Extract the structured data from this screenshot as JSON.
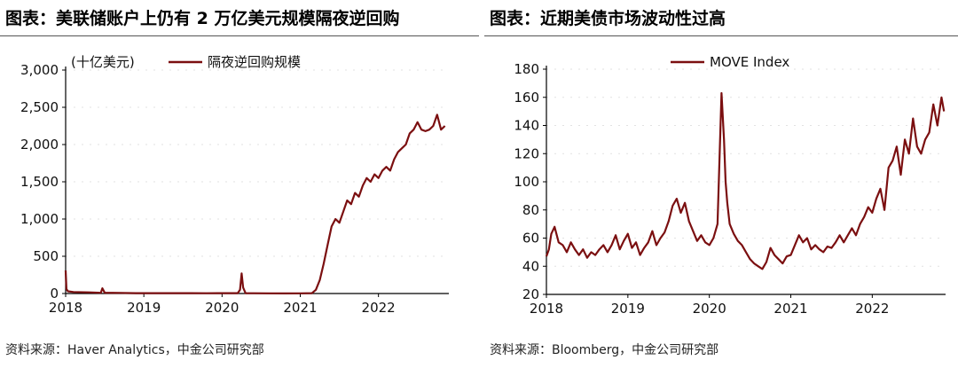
{
  "panels": {
    "left": {
      "title": "图表：美联储账户上仍有 2 万亿美元规模隔夜逆回购",
      "source": "资料来源：Haver Analytics，中金公司研究部"
    },
    "right": {
      "title": "图表：近期美债市场波动性过高",
      "source": "资料来源：Bloomberg，中金公司研究部"
    }
  },
  "colors": {
    "series": "#7b0f10",
    "axis": "#000000",
    "grid": "#e2e2e2"
  },
  "chart_data": [
    {
      "type": "line",
      "unit_label": "(十亿美元)",
      "xlim": [
        2018,
        2022.9
      ],
      "ylim": [
        0,
        3000
      ],
      "x_ticks": [
        2018,
        2019,
        2020,
        2021,
        2022
      ],
      "x_tick_labels": [
        "2018",
        "2019",
        "2020",
        "2021",
        "2022"
      ],
      "y_ticks": [
        0,
        500,
        1000,
        1500,
        2000,
        2500,
        3000
      ],
      "y_tick_labels": [
        "0",
        "500",
        "1,000",
        "1,500",
        "2,000",
        "2,500",
        "3,000"
      ],
      "legend_position": "top",
      "grid": true,
      "series": [
        {
          "name": "隔夜逆回购规模",
          "x": [
            2018,
            2018.01,
            2018.03,
            2018.1,
            2018.3,
            2018.45,
            2018.47,
            2018.5,
            2018.7,
            2018.9,
            2019,
            2019.2,
            2019.4,
            2019.6,
            2019.8,
            2019.95,
            2020,
            2020.1,
            2020.2,
            2020.23,
            2020.25,
            2020.27,
            2020.3,
            2020.4,
            2020.6,
            2020.8,
            2021,
            2021.15,
            2021.2,
            2021.25,
            2021.3,
            2021.35,
            2021.4,
            2021.45,
            2021.5,
            2021.55,
            2021.6,
            2021.65,
            2021.7,
            2021.75,
            2021.8,
            2021.85,
            2021.9,
            2021.95,
            2022,
            2022.05,
            2022.1,
            2022.15,
            2022.2,
            2022.25,
            2022.3,
            2022.35,
            2022.4,
            2022.45,
            2022.5,
            2022.55,
            2022.6,
            2022.65,
            2022.7,
            2022.75,
            2022.8,
            2022.85
          ],
          "y": [
            310,
            60,
            30,
            20,
            15,
            10,
            70,
            10,
            8,
            5,
            5,
            5,
            5,
            5,
            3,
            5,
            5,
            5,
            5,
            50,
            270,
            80,
            5,
            3,
            2,
            1,
            2,
            5,
            50,
            180,
            400,
            650,
            900,
            1000,
            950,
            1100,
            1250,
            1200,
            1350,
            1300,
            1450,
            1550,
            1500,
            1600,
            1550,
            1650,
            1700,
            1650,
            1800,
            1900,
            1950,
            2000,
            2150,
            2200,
            2300,
            2200,
            2180,
            2200,
            2250,
            2400,
            2200,
            2250
          ]
        }
      ]
    },
    {
      "type": "line",
      "xlim": [
        2018,
        2022.9
      ],
      "ylim": [
        20,
        180
      ],
      "x_ticks": [
        2018,
        2019,
        2020,
        2021,
        2022
      ],
      "x_tick_labels": [
        "2018",
        "2019",
        "2020",
        "2021",
        "2022"
      ],
      "y_ticks": [
        20,
        40,
        60,
        80,
        100,
        120,
        140,
        160,
        180
      ],
      "y_tick_labels": [
        "20",
        "40",
        "60",
        "80",
        "100",
        "120",
        "140",
        "160",
        "180"
      ],
      "legend_position": "top",
      "grid": true,
      "series": [
        {
          "name": "MOVE Index",
          "x": [
            2018,
            2018.03,
            2018.06,
            2018.1,
            2018.15,
            2018.2,
            2018.25,
            2018.3,
            2018.35,
            2018.4,
            2018.45,
            2018.5,
            2018.55,
            2018.6,
            2018.65,
            2018.7,
            2018.75,
            2018.8,
            2018.85,
            2018.9,
            2018.95,
            2019,
            2019.05,
            2019.1,
            2019.15,
            2019.2,
            2019.25,
            2019.3,
            2019.35,
            2019.4,
            2019.45,
            2019.5,
            2019.55,
            2019.6,
            2019.65,
            2019.7,
            2019.75,
            2019.8,
            2019.85,
            2019.9,
            2019.95,
            2020,
            2020.05,
            2020.1,
            2020.15,
            2020.18,
            2020.2,
            2020.22,
            2020.25,
            2020.3,
            2020.35,
            2020.4,
            2020.45,
            2020.5,
            2020.55,
            2020.6,
            2020.65,
            2020.7,
            2020.75,
            2020.8,
            2020.85,
            2020.9,
            2020.95,
            2021,
            2021.05,
            2021.1,
            2021.15,
            2021.2,
            2021.25,
            2021.3,
            2021.35,
            2021.4,
            2021.45,
            2021.5,
            2021.55,
            2021.6,
            2021.65,
            2021.7,
            2021.75,
            2021.8,
            2021.85,
            2021.9,
            2021.95,
            2022,
            2022.05,
            2022.1,
            2022.15,
            2022.2,
            2022.25,
            2022.3,
            2022.35,
            2022.4,
            2022.45,
            2022.5,
            2022.55,
            2022.6,
            2022.65,
            2022.7,
            2022.75,
            2022.8,
            2022.85,
            2022.88
          ],
          "y": [
            47,
            52,
            63,
            68,
            57,
            55,
            50,
            57,
            52,
            48,
            52,
            46,
            50,
            48,
            52,
            55,
            50,
            55,
            62,
            52,
            58,
            63,
            53,
            57,
            48,
            53,
            57,
            65,
            55,
            60,
            64,
            72,
            83,
            88,
            78,
            85,
            72,
            65,
            58,
            62,
            57,
            55,
            60,
            70,
            163,
            130,
            100,
            85,
            70,
            63,
            58,
            55,
            50,
            45,
            42,
            40,
            38,
            43,
            53,
            48,
            45,
            42,
            47,
            48,
            55,
            62,
            57,
            60,
            52,
            55,
            52,
            50,
            54,
            53,
            57,
            62,
            57,
            62,
            67,
            62,
            70,
            75,
            82,
            78,
            88,
            95,
            80,
            110,
            115,
            125,
            105,
            130,
            120,
            145,
            125,
            120,
            130,
            135,
            155,
            140,
            160,
            150
          ]
        }
      ]
    }
  ]
}
